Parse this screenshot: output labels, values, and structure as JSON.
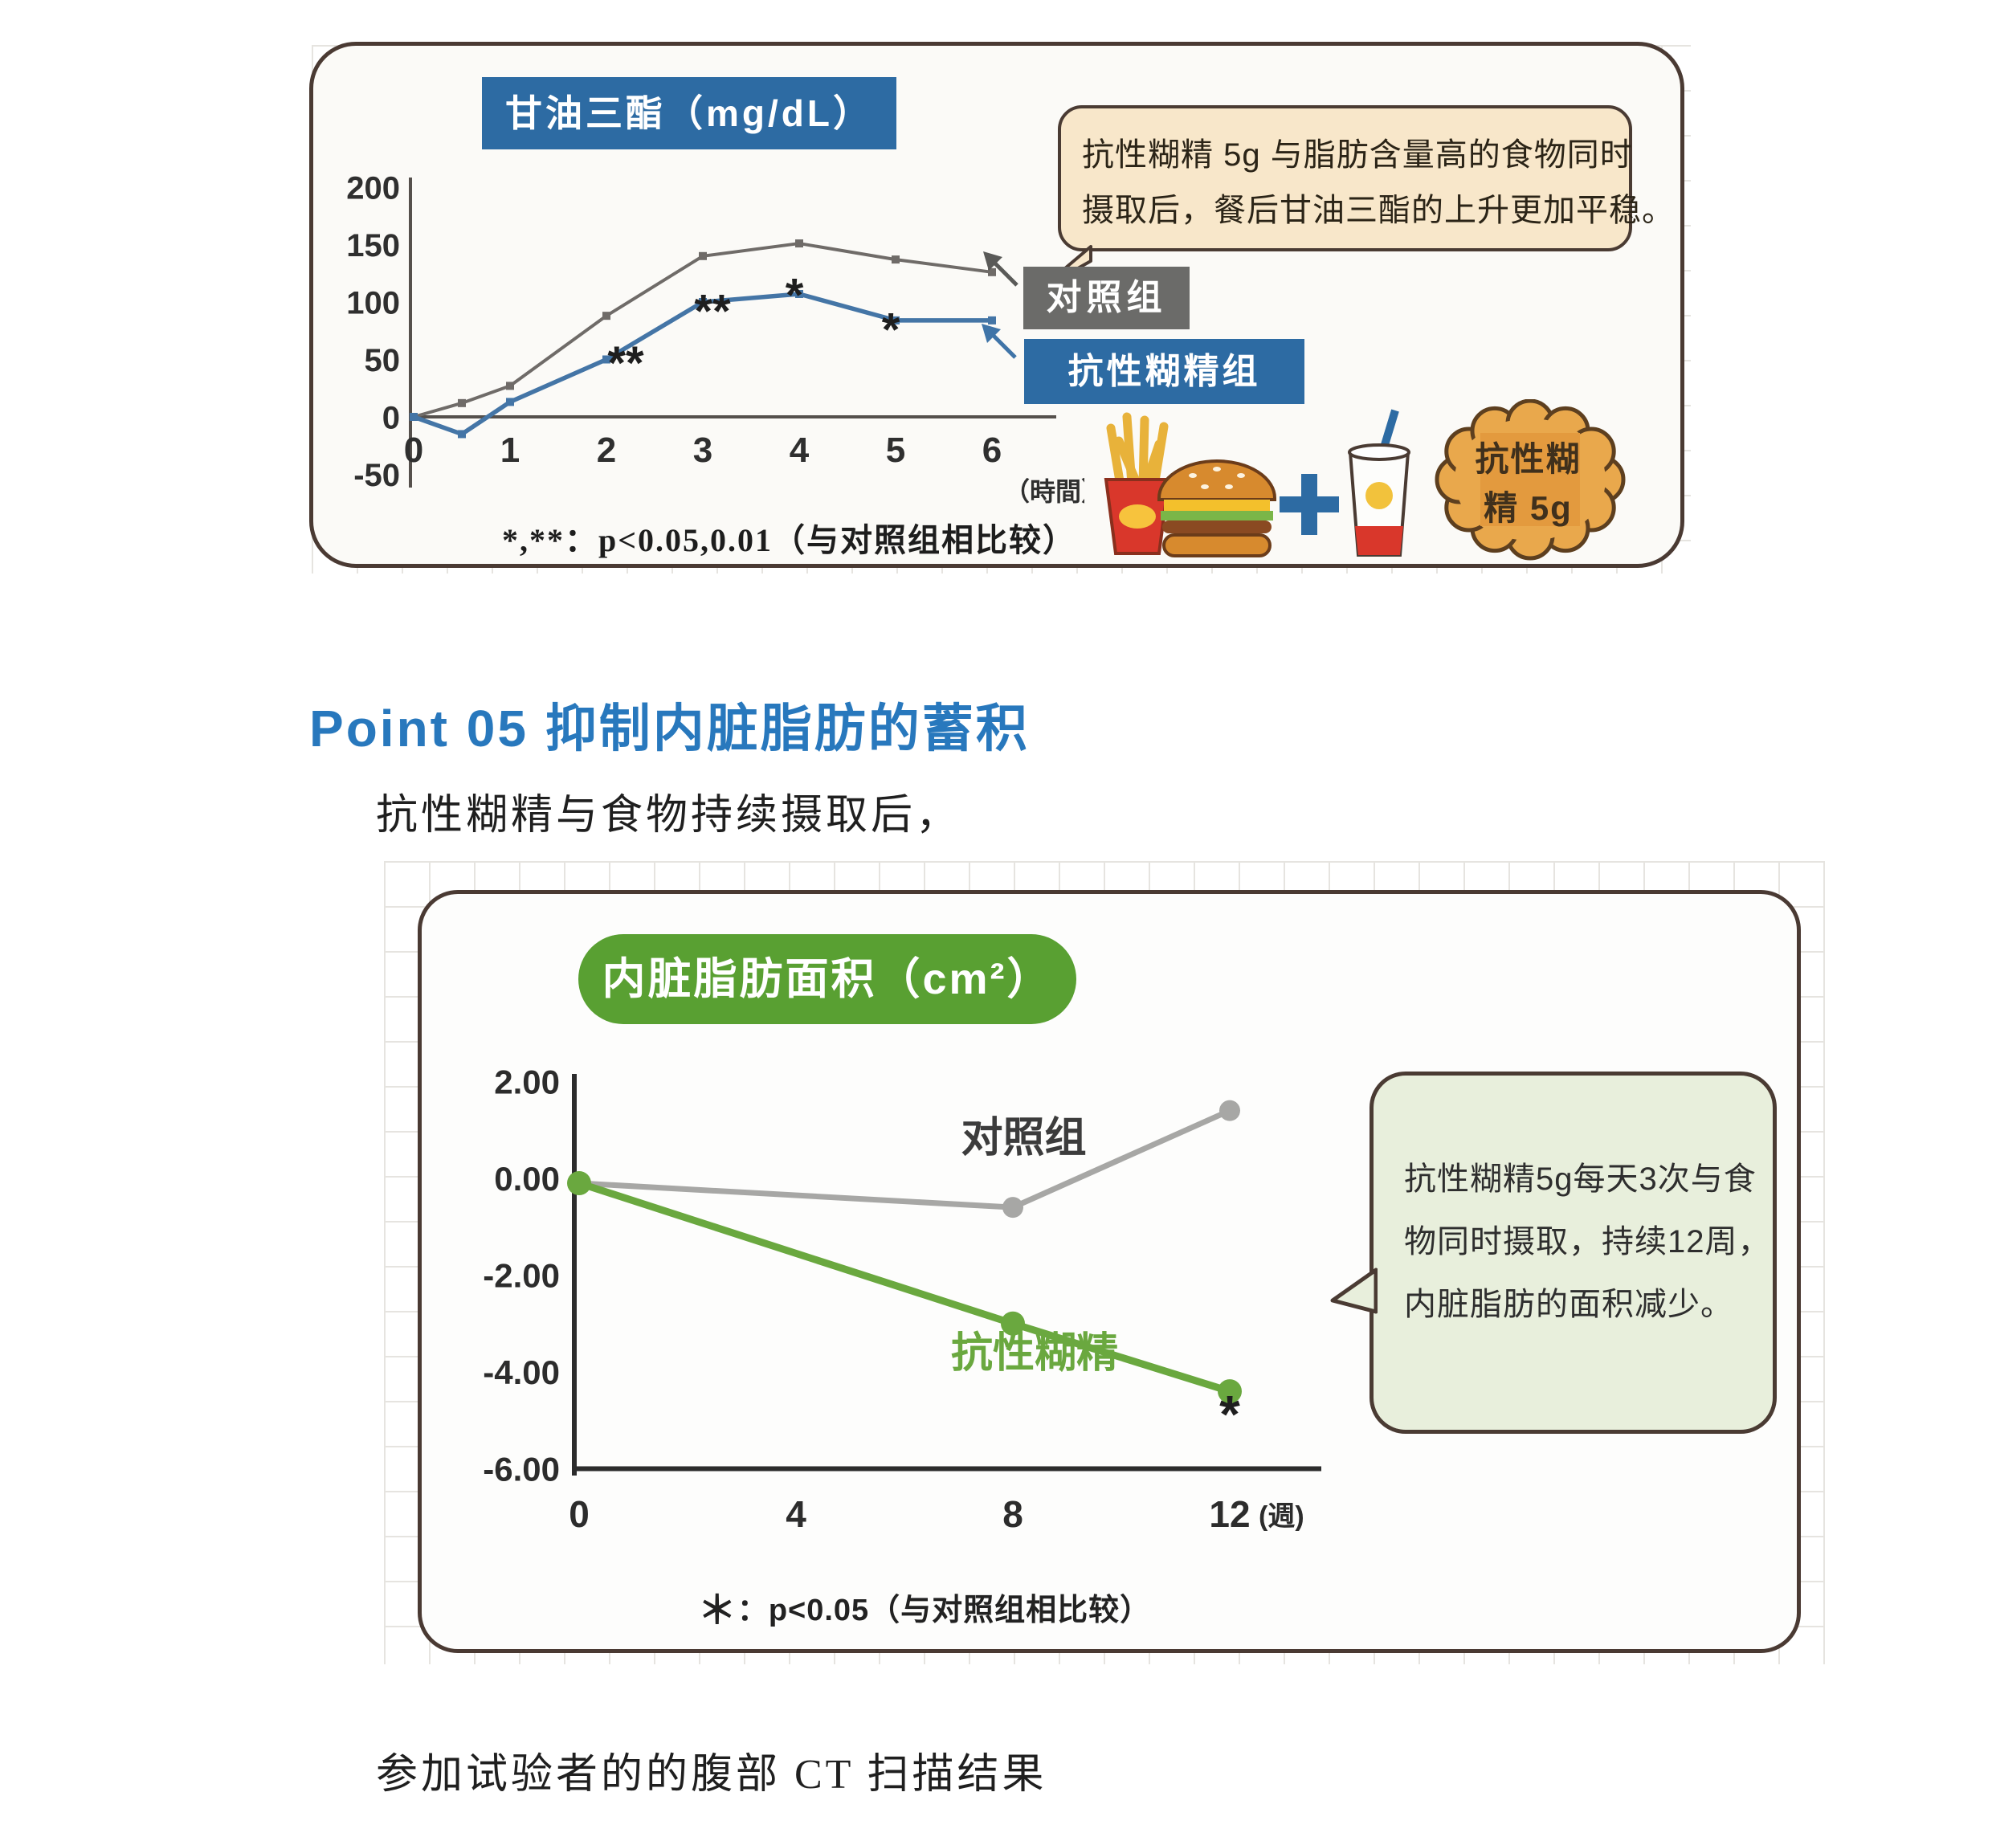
{
  "page": {
    "heading": "Point 05 抑制内脏脂肪的蓄积",
    "paragraph": "抗性糊精与食物持续摄取后，",
    "bottom_note": "参加试验者的的腹部 CT 扫描结果"
  },
  "colors": {
    "accent_blue": "#2d6ba3",
    "accent_green": "#59a032",
    "card_border": "#4a3a33",
    "heading_blue": "#2878bd",
    "bubble_peach": "#f8e7ca",
    "bubble_green": "#e8efdc",
    "line_gray_top": "#6f6b68",
    "line_blue": "#4475a6",
    "line_gray_bottom": "#a7a7a5",
    "line_green": "#6aa83f",
    "badge_orange": "#e9a84c"
  },
  "top_panel": {
    "title": "甘油三酯（mg/dL）",
    "bubble_lines": [
      "抗性糊精 5g 与脂肪含量高的食物同时",
      "摄取后，餐后甘油三酯的上升更加平稳。"
    ],
    "legend": [
      {
        "label": "对照组",
        "color": "#6b6b69"
      },
      {
        "label": "抗性糊精组",
        "color": "#2d6ba3"
      }
    ],
    "footnote": "*,**：p<0.05,0.01（与对照组相比较）",
    "badge_lines": [
      "抗性糊",
      "精 5g"
    ],
    "icons": [
      "fries-icon",
      "burger-icon",
      "plus-icon",
      "drink-icon",
      "resistant-dextrin-badge"
    ]
  },
  "bottom_panel": {
    "title": "内脏脂肪面积（cm²）",
    "bubble_lines": [
      "抗性糊精5g每天3次与食",
      "物同时摄取，持续12周，",
      "内脏脂肪的面积减少。"
    ],
    "footnote_star": "＊",
    "footnote_rest": "：p<0.05（与对照组相比较）"
  },
  "chart_data": [
    {
      "type": "line",
      "title": "甘油三酯（mg/dL）",
      "xlabel": "（時間）",
      "ylabel": "mg/dL",
      "x_ticks": [
        0,
        1,
        2,
        3,
        4,
        5,
        6
      ],
      "y_ticks": [
        200,
        150,
        100,
        50,
        0,
        -50
      ],
      "ylim": [
        -50,
        200
      ],
      "xlim": [
        0,
        6.6
      ],
      "x": [
        0,
        0.5,
        1,
        2,
        3,
        4,
        5,
        6
      ],
      "series": [
        {
          "name": "对照组",
          "color": "#6f6b68",
          "width": 4,
          "values": [
            0,
            12,
            27,
            88,
            140,
            151,
            137,
            126
          ]
        },
        {
          "name": "抗性糊精组",
          "color": "#4475a6",
          "width": 5.5,
          "values": [
            0,
            -15,
            13,
            50,
            100,
            107,
            84,
            84
          ]
        }
      ],
      "annotations": [
        {
          "text": "**",
          "x": 2.2,
          "y": 33
        },
        {
          "text": "**",
          "x": 3.1,
          "y": 78
        },
        {
          "text": "*",
          "x": 3.95,
          "y": 92
        },
        {
          "text": "*",
          "x": 4.95,
          "y": 62
        }
      ],
      "footnote": "*,**：p<0.05,0.01（与对照组相比较）"
    },
    {
      "type": "line",
      "title": "内脏脂肪面积（cm²）",
      "xlabel": "(週)",
      "ylabel": "cm²",
      "x_ticks": [
        0,
        4,
        8,
        12
      ],
      "y_ticks": [
        2,
        0,
        -2,
        -4,
        -6
      ],
      "y_tick_labels": [
        "2.00",
        "0.00",
        "-2.00",
        "-4.00",
        "-6.00"
      ],
      "ylim": [
        -6,
        2
      ],
      "xlim": [
        0,
        13
      ],
      "x": [
        0,
        8,
        12
      ],
      "series": [
        {
          "name": "对照组",
          "color": "#a7a7a5",
          "label_color": "#3c3c3c",
          "width": 7,
          "marker_r": 13,
          "values": [
            -0.1,
            -0.6,
            1.4
          ],
          "label_at": {
            "x": 8.2,
            "y": 0.55
          }
        },
        {
          "name": "抗性糊精",
          "color": "#6aa83f",
          "label_color": "#6aa83f",
          "width": 9,
          "marker_r": 15,
          "values": [
            -0.1,
            -3.0,
            -4.4
          ],
          "label_at": {
            "x": 8.4,
            "y": -3.9
          }
        }
      ],
      "annotations": [
        {
          "text": "*",
          "x": 12,
          "y": -5.25
        }
      ],
      "footnote": "＊：p<0.05（与对照组相比较）"
    }
  ]
}
